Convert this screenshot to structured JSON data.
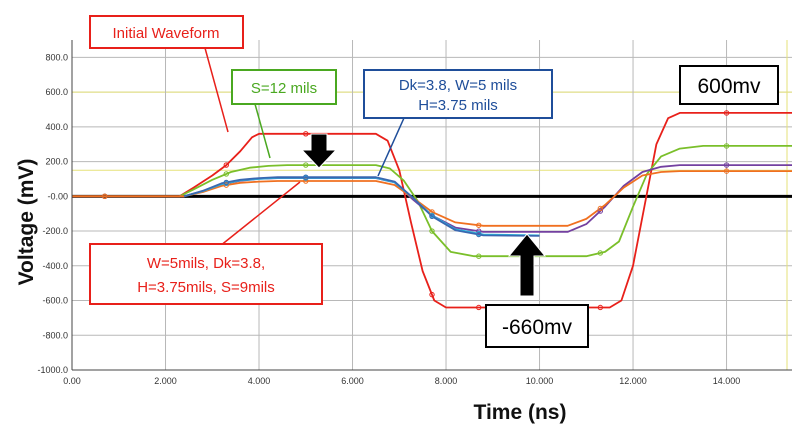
{
  "chart_data": {
    "type": "line",
    "xlabel": "Time (ns)",
    "ylabel": "Voltage (mV)",
    "xlim": [
      0,
      15.4
    ],
    "ylim": [
      -1000,
      900
    ],
    "x_ticks": [
      "0.00",
      "2.000",
      "4.000",
      "6.000",
      "8.000",
      "10.000",
      "12.000",
      "14.000"
    ],
    "y_ticks": [
      "800.0",
      "600.0",
      "400.0",
      "200.0",
      "-0.00",
      "-200.0",
      "-400.0",
      "-600.0",
      "-800.0",
      "-1000.0"
    ],
    "grid": true,
    "series": [
      {
        "color": "#e8201a",
        "x": [
          0,
          2.3,
          2.6,
          3.0,
          3.3,
          3.6,
          3.85,
          4.0,
          6.5,
          6.75,
          7.0,
          7.25,
          7.5,
          7.75,
          8.0,
          11.5,
          11.75,
          12.0,
          12.25,
          12.5,
          12.75,
          13.0,
          15.4
        ],
        "y": [
          0,
          0,
          50,
          120,
          180,
          260,
          340,
          360,
          360,
          320,
          150,
          -150,
          -430,
          -600,
          -640,
          -640,
          -600,
          -400,
          -50,
          300,
          450,
          480,
          480
        ]
      },
      {
        "color": "#7abf2a",
        "x": [
          0,
          2.3,
          2.6,
          3.0,
          3.4,
          3.8,
          4.2,
          4.6,
          6.5,
          6.8,
          7.1,
          7.4,
          7.7,
          8.1,
          8.6,
          11.0,
          11.4,
          11.7,
          12.0,
          12.3,
          12.6,
          13.0,
          13.5,
          15.4
        ],
        "y": [
          0,
          0,
          40,
          95,
          140,
          165,
          175,
          180,
          180,
          160,
          90,
          -30,
          -200,
          -320,
          -345,
          -345,
          -320,
          -260,
          -60,
          130,
          230,
          275,
          290,
          290
        ]
      },
      {
        "color": "#7340a0",
        "x": [
          0,
          2.4,
          2.8,
          3.2,
          3.6,
          4.0,
          4.4,
          6.5,
          6.9,
          7.3,
          7.7,
          8.2,
          8.8,
          10.6,
          11.0,
          11.4,
          11.8,
          12.2,
          12.6,
          13.0,
          15.4
        ],
        "y": [
          0,
          0,
          30,
          70,
          90,
          100,
          105,
          105,
          80,
          -20,
          -110,
          -180,
          -205,
          -205,
          -160,
          -60,
          60,
          140,
          170,
          180,
          180
        ]
      },
      {
        "color": "#f07020",
        "x": [
          0,
          2.4,
          2.8,
          3.2,
          3.6,
          4.0,
          4.4,
          6.5,
          6.9,
          7.3,
          7.7,
          8.2,
          8.8,
          10.6,
          11.0,
          11.4,
          11.8,
          12.2,
          12.6,
          13.0,
          15.4
        ],
        "y": [
          0,
          0,
          25,
          60,
          78,
          85,
          88,
          88,
          65,
          -10,
          -90,
          -150,
          -170,
          -170,
          -130,
          -50,
          50,
          120,
          140,
          145,
          145
        ]
      },
      {
        "color": "#28b4dc",
        "x": [
          2.4,
          2.8,
          3.2,
          3.6,
          4.0,
          4.4,
          6.5,
          6.9,
          7.3,
          7.7,
          8.2,
          8.8,
          10.0
        ],
        "y": [
          0,
          30,
          70,
          92,
          100,
          106,
          106,
          80,
          -10,
          -110,
          -190,
          -220,
          -225
        ]
      },
      {
        "color": "#3a68b0",
        "x": [
          2.4,
          2.8,
          3.2,
          3.6,
          4.0,
          4.4,
          6.5,
          6.9,
          7.3,
          7.7,
          8.2,
          8.8,
          10.0
        ],
        "y": [
          0,
          32,
          75,
          95,
          105,
          110,
          110,
          85,
          -10,
          -115,
          -195,
          -225,
          -228
        ]
      }
    ],
    "annotations": [
      {
        "text": "Initial Waveform",
        "color": "#e8201a"
      },
      {
        "text": "S=12 mils",
        "color": "#4aa820"
      },
      {
        "text": "Dk=3.8, W=5 mils",
        "color": "#1f4e9a"
      },
      {
        "text": "H=3.75 mils",
        "color": "#1f4e9a"
      },
      {
        "text": "W=5mils, Dk=3.8,",
        "color": "#e8201a"
      },
      {
        "text": "H=3.75mils, S=9mils",
        "color": "#e8201a"
      },
      {
        "text": "600mv",
        "color": "#000000"
      },
      {
        "text": "-660mv",
        "color": "#000000"
      }
    ]
  }
}
